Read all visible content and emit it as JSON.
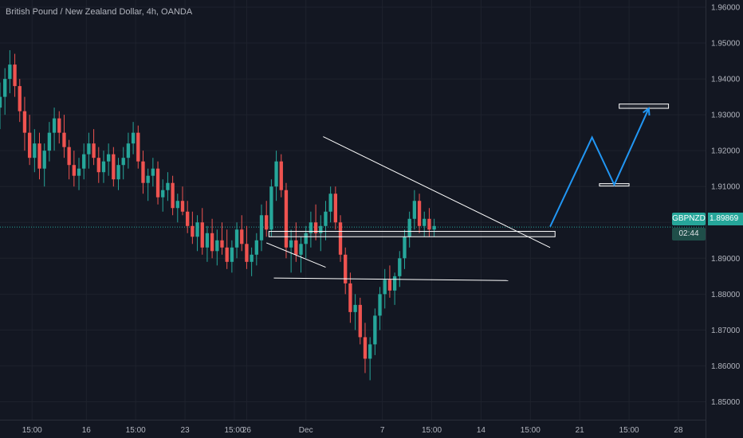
{
  "chart_data": {
    "type": "candlestick",
    "title": "British Pound / New Zealand Dollar, 4h, OANDA",
    "symbol": "GBPNZD",
    "last_price": "1.89869",
    "countdown": "02:44",
    "ylim": [
      1.845,
      1.962
    ],
    "y_ticks": [
      "1.85000",
      "1.86000",
      "1.87000",
      "1.88000",
      "1.89000",
      "1.90000",
      "1.91000",
      "1.92000",
      "1.93000",
      "1.94000",
      "1.95000",
      "1.96000"
    ],
    "y_tick_values": [
      1.85,
      1.86,
      1.87,
      1.88,
      1.89,
      1.9,
      1.91,
      1.92,
      1.93,
      1.94,
      1.95,
      1.96
    ],
    "x_ticks": [
      "15:00",
      "16",
      "15:00",
      "23",
      "15:00",
      "26",
      "Dec",
      "7",
      "15:00",
      "14",
      "15:00",
      "21",
      "15:00",
      "28"
    ],
    "x_tick_bars": [
      6.5,
      17.5,
      27.5,
      37.5,
      47.5,
      50,
      62,
      77.5,
      87.5,
      97.5,
      107.5,
      117.5,
      127.5,
      137.5
    ],
    "x_bar_range": [
      0,
      143
    ],
    "colors": {
      "up": "#26a69a",
      "down": "#ef5350",
      "background": "#131722",
      "grid": "#1e222d",
      "text": "#b2b5be",
      "projection": "#2196f3",
      "trendline": "#ffffff"
    },
    "candles": [
      [
        1.932,
        1.939,
        1.926,
        1.935
      ],
      [
        1.935,
        1.943,
        1.93,
        1.94
      ],
      [
        1.94,
        1.948,
        1.936,
        1.944
      ],
      [
        1.944,
        1.947,
        1.935,
        1.938
      ],
      [
        1.938,
        1.94,
        1.928,
        1.931
      ],
      [
        1.931,
        1.935,
        1.92,
        1.925
      ],
      [
        1.925,
        1.93,
        1.916,
        1.918
      ],
      [
        1.918,
        1.926,
        1.914,
        1.922
      ],
      [
        1.922,
        1.925,
        1.912,
        1.915
      ],
      [
        1.915,
        1.922,
        1.91,
        1.92
      ],
      [
        1.92,
        1.928,
        1.917,
        1.925
      ],
      [
        1.925,
        1.932,
        1.92,
        1.929
      ],
      [
        1.929,
        1.931,
        1.922,
        1.925
      ],
      [
        1.925,
        1.93,
        1.918,
        1.921
      ],
      [
        1.921,
        1.923,
        1.912,
        1.916
      ],
      [
        1.916,
        1.92,
        1.91,
        1.913
      ],
      [
        1.913,
        1.918,
        1.909,
        1.915
      ],
      [
        1.915,
        1.922,
        1.912,
        1.919
      ],
      [
        1.919,
        1.925,
        1.915,
        1.922
      ],
      [
        1.922,
        1.926,
        1.916,
        1.918
      ],
      [
        1.918,
        1.921,
        1.911,
        1.914
      ],
      [
        1.914,
        1.92,
        1.911,
        1.917
      ],
      [
        1.917,
        1.922,
        1.913,
        1.919
      ],
      [
        1.919,
        1.921,
        1.91,
        1.912
      ],
      [
        1.912,
        1.918,
        1.909,
        1.916
      ],
      [
        1.916,
        1.921,
        1.912,
        1.918
      ],
      [
        1.918,
        1.925,
        1.915,
        1.922
      ],
      [
        1.922,
        1.928,
        1.919,
        1.925
      ],
      [
        1.925,
        1.927,
        1.915,
        1.917
      ],
      [
        1.917,
        1.92,
        1.908,
        1.911
      ],
      [
        1.911,
        1.915,
        1.906,
        1.913
      ],
      [
        1.913,
        1.918,
        1.91,
        1.915
      ],
      [
        1.915,
        1.917,
        1.905,
        1.907
      ],
      [
        1.907,
        1.912,
        1.903,
        1.909
      ],
      [
        1.909,
        1.914,
        1.906,
        1.911
      ],
      [
        1.911,
        1.913,
        1.902,
        1.904
      ],
      [
        1.904,
        1.908,
        1.9,
        1.906
      ],
      [
        1.906,
        1.91,
        1.902,
        1.903
      ],
      [
        1.903,
        1.906,
        1.897,
        1.899
      ],
      [
        1.899,
        1.903,
        1.894,
        1.896
      ],
      [
        1.896,
        1.902,
        1.892,
        1.9
      ],
      [
        1.9,
        1.904,
        1.891,
        1.893
      ],
      [
        1.893,
        1.899,
        1.889,
        1.897
      ],
      [
        1.897,
        1.901,
        1.89,
        1.892
      ],
      [
        1.892,
        1.898,
        1.888,
        1.895
      ],
      [
        1.895,
        1.9,
        1.891,
        1.893
      ],
      [
        1.893,
        1.898,
        1.887,
        1.889
      ],
      [
        1.889,
        1.895,
        1.886,
        1.893
      ],
      [
        1.893,
        1.9,
        1.89,
        1.898
      ],
      [
        1.898,
        1.902,
        1.892,
        1.894
      ],
      [
        1.894,
        1.899,
        1.887,
        1.889
      ],
      [
        1.889,
        1.893,
        1.885,
        1.891
      ],
      [
        1.891,
        1.897,
        1.888,
        1.895
      ],
      [
        1.895,
        1.905,
        1.892,
        1.902
      ],
      [
        1.902,
        1.906,
        1.896,
        1.898
      ],
      [
        1.898,
        1.912,
        1.896,
        1.91
      ],
      [
        1.91,
        1.92,
        1.906,
        1.917
      ],
      [
        1.917,
        1.919,
        1.907,
        1.909
      ],
      [
        1.909,
        1.911,
        1.89,
        1.893
      ],
      [
        1.893,
        1.898,
        1.886,
        1.895
      ],
      [
        1.895,
        1.9,
        1.889,
        1.891
      ],
      [
        1.891,
        1.896,
        1.886,
        1.894
      ],
      [
        1.894,
        1.899,
        1.89,
        1.897
      ],
      [
        1.897,
        1.903,
        1.893,
        1.9
      ],
      [
        1.9,
        1.905,
        1.895,
        1.897
      ],
      [
        1.897,
        1.902,
        1.892,
        1.899
      ],
      [
        1.899,
        1.906,
        1.895,
        1.903
      ],
      [
        1.903,
        1.91,
        1.9,
        1.908
      ],
      [
        1.908,
        1.91,
        1.898,
        1.9
      ],
      [
        1.9,
        1.902,
        1.889,
        1.891
      ],
      [
        1.891,
        1.893,
        1.88,
        1.883
      ],
      [
        1.883,
        1.886,
        1.872,
        1.875
      ],
      [
        1.875,
        1.88,
        1.87,
        1.877
      ],
      [
        1.877,
        1.879,
        1.866,
        1.868
      ],
      [
        1.868,
        1.872,
        1.858,
        1.862
      ],
      [
        1.862,
        1.868,
        1.856,
        1.866
      ],
      [
        1.866,
        1.876,
        1.863,
        1.874
      ],
      [
        1.874,
        1.882,
        1.87,
        1.88
      ],
      [
        1.88,
        1.887,
        1.876,
        1.884
      ],
      [
        1.884,
        1.888,
        1.879,
        1.881
      ],
      [
        1.881,
        1.886,
        1.877,
        1.885
      ],
      [
        1.885,
        1.892,
        1.882,
        1.89
      ],
      [
        1.89,
        1.898,
        1.887,
        1.896
      ],
      [
        1.896,
        1.903,
        1.893,
        1.901
      ],
      [
        1.901,
        1.909,
        1.898,
        1.906
      ],
      [
        1.906,
        1.908,
        1.897,
        1.899
      ],
      [
        1.899,
        1.903,
        1.896,
        1.901
      ],
      [
        1.901,
        1.904,
        1.896,
        1.898
      ],
      [
        1.898,
        1.901,
        1.896,
        1.899
      ]
    ],
    "candle_x_bars": [
      0,
      1,
      2,
      3,
      4,
      5,
      6,
      7,
      8,
      9,
      10,
      11,
      12,
      13,
      14,
      15,
      16,
      17,
      18,
      19,
      20,
      21,
      22,
      23,
      24,
      25,
      26,
      27,
      28,
      29,
      30,
      31,
      32,
      33,
      34,
      35,
      36,
      37,
      38,
      39,
      40,
      41,
      42,
      43,
      44,
      45,
      46,
      47,
      48,
      49,
      50,
      51,
      52,
      53,
      54,
      55,
      56,
      57,
      58,
      59,
      60,
      61,
      62,
      63,
      64,
      65,
      66,
      67,
      68,
      69,
      70,
      71,
      72,
      73,
      74,
      75,
      76,
      77,
      78,
      79,
      80,
      81,
      82,
      83,
      84,
      85,
      86,
      87,
      88
    ],
    "drawings": {
      "trendlines": [
        {
          "from": [
            65.5,
            1.9239
          ],
          "to": [
            111.5,
            1.893
          ]
        },
        {
          "from": [
            54,
            1.8943
          ],
          "to": [
            66,
            1.8875
          ]
        },
        {
          "from": [
            55.5,
            1.8845
          ],
          "to": [
            103,
            1.8838
          ]
        }
      ],
      "boxes": [
        {
          "x": [
            54.5,
            112.5
          ],
          "y": [
            1.896,
            1.8975
          ]
        },
        {
          "x": [
            121.5,
            127.5
          ],
          "y": [
            1.9102,
            1.9108
          ]
        },
        {
          "x": [
            125.5,
            135.5
          ],
          "y": [
            1.9318,
            1.933
          ]
        }
      ],
      "projection": [
        [
          111.5,
          1.8988
        ],
        [
          120,
          1.9237
        ],
        [
          124.5,
          1.9105
        ],
        [
          131.5,
          1.9318
        ]
      ]
    }
  }
}
